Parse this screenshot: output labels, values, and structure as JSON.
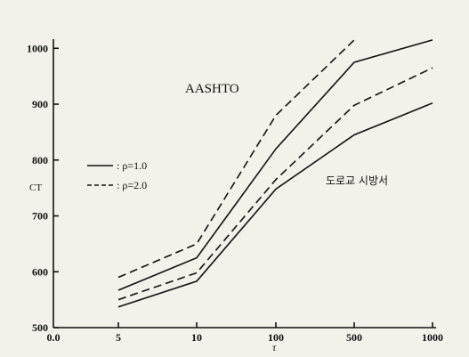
{
  "chart_data": {
    "type": "line",
    "x_axis_kind": "categorical",
    "x_ticks": [
      "0.0",
      "5",
      "10",
      "100",
      "500",
      "1000"
    ],
    "x_label": "τ",
    "y_label": "CT",
    "y_ticks": [
      500,
      600,
      700,
      800,
      900,
      1000
    ],
    "ylim": [
      500,
      1010
    ],
    "annotations": {
      "aashto": "AASHTO",
      "spec": "도로교 시방서"
    },
    "legend": [
      {
        "marker": "—",
        "label": ": ρ=1.0",
        "style": "solid"
      },
      {
        "marker": "- - -",
        "label": ": ρ=2.0",
        "style": "dashed"
      }
    ],
    "series": [
      {
        "style": "dashed",
        "x": [
          "5",
          "10",
          "100",
          "500"
        ],
        "y": [
          590,
          650,
          880,
          1015
        ]
      },
      {
        "style": "solid",
        "x": [
          "5",
          "10",
          "100",
          "500",
          "1000"
        ],
        "y": [
          567,
          625,
          820,
          975,
          1015
        ]
      },
      {
        "style": "dashed",
        "x": [
          "5",
          "10",
          "100",
          "500",
          "1000"
        ],
        "y": [
          550,
          598,
          765,
          898,
          965
        ]
      },
      {
        "style": "solid",
        "x": [
          "5",
          "10",
          "100",
          "500",
          "1000"
        ],
        "y": [
          537,
          583,
          748,
          845,
          902
        ]
      }
    ]
  }
}
